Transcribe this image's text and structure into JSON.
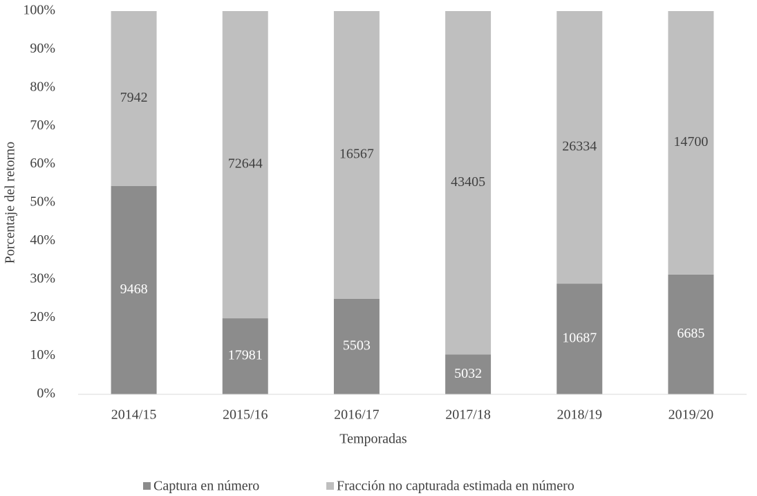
{
  "chart_data": {
    "type": "bar",
    "stacking": "percent",
    "x_label": "Temporadas",
    "y_label": "Porcentaje del retorno",
    "categories": [
      "2014/15",
      "2015/16",
      "2016/17",
      "2017/18",
      "2018/19",
      "2019/20"
    ],
    "series": [
      {
        "name": "Captura en número",
        "color": "#8c8c8c",
        "label_color": "#ffffff",
        "values": [
          9468,
          17981,
          5503,
          5032,
          10687,
          6685
        ]
      },
      {
        "name": "Fracción no capturada estimada en número",
        "color": "#bfbfbf",
        "label_color": "#404040",
        "values": [
          7942,
          72644,
          16567,
          43405,
          26334,
          14700
        ]
      }
    ],
    "ylim": [
      0,
      100
    ],
    "yticks": [
      {
        "value": 0,
        "label": "0%"
      },
      {
        "value": 10,
        "label": "10%"
      },
      {
        "value": 20,
        "label": "20%"
      },
      {
        "value": 30,
        "label": "30%"
      },
      {
        "value": 40,
        "label": "40%"
      },
      {
        "value": 50,
        "label": "50%"
      },
      {
        "value": 60,
        "label": "60%"
      },
      {
        "value": 70,
        "label": "70%"
      },
      {
        "value": 80,
        "label": "80%"
      },
      {
        "value": 90,
        "label": "90%"
      },
      {
        "value": 100,
        "label": "100%"
      }
    ],
    "grid": false,
    "legend": "bottom"
  }
}
